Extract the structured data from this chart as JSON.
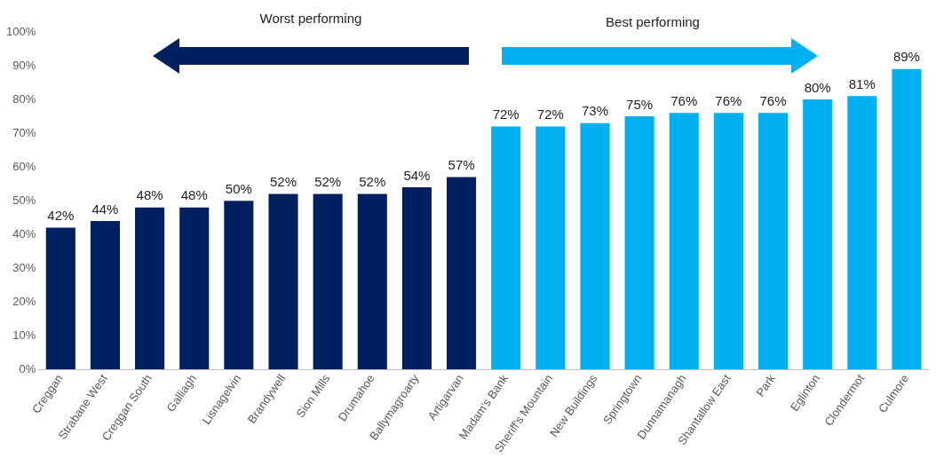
{
  "chart_data": {
    "type": "bar",
    "categories": [
      "Creggan",
      "Strabane West",
      "Creggan South",
      "Galliagh",
      "Lisnagelvin",
      "Brandywell",
      "Sion Mills",
      "Drumahoe",
      "Ballymagroarty",
      "Artigarvan",
      "Madam's Bank",
      "Sheriff's Mountain",
      "New Buildings",
      "Springtown",
      "Dunnamanagh",
      "Shantallow East",
      "Park",
      "Eglinton",
      "Clondermot",
      "Culmore"
    ],
    "values": [
      42,
      44,
      48,
      48,
      50,
      52,
      52,
      52,
      54,
      57,
      72,
      72,
      73,
      75,
      76,
      76,
      76,
      80,
      81,
      89
    ],
    "value_labels": [
      "42%",
      "44%",
      "48%",
      "48%",
      "50%",
      "52%",
      "52%",
      "52%",
      "54%",
      "57%",
      "72%",
      "72%",
      "73%",
      "75%",
      "76%",
      "76%",
      "76%",
      "80%",
      "81%",
      "89%"
    ],
    "colors": [
      "#002060",
      "#002060",
      "#002060",
      "#002060",
      "#002060",
      "#002060",
      "#002060",
      "#002060",
      "#002060",
      "#002060",
      "#00b0f0",
      "#00b0f0",
      "#00b0f0",
      "#00b0f0",
      "#00b0f0",
      "#00b0f0",
      "#00b0f0",
      "#00b0f0",
      "#00b0f0",
      "#00b0f0"
    ],
    "ylim": [
      0,
      100
    ],
    "yticks": [
      {
        "value": 0,
        "label": "0%"
      },
      {
        "value": 10,
        "label": "10%"
      },
      {
        "value": 20,
        "label": "20%"
      },
      {
        "value": 30,
        "label": "30%"
      },
      {
        "value": 40,
        "label": "40%"
      },
      {
        "value": 50,
        "label": "50%"
      },
      {
        "value": 60,
        "label": "60%"
      },
      {
        "value": 70,
        "label": "70%"
      },
      {
        "value": 80,
        "label": "80%"
      },
      {
        "value": 90,
        "label": "90%"
      },
      {
        "value": 100,
        "label": "100%"
      }
    ],
    "annotations": [
      "Worst performing",
      "Best performing"
    ],
    "grid": false,
    "legend": false
  }
}
